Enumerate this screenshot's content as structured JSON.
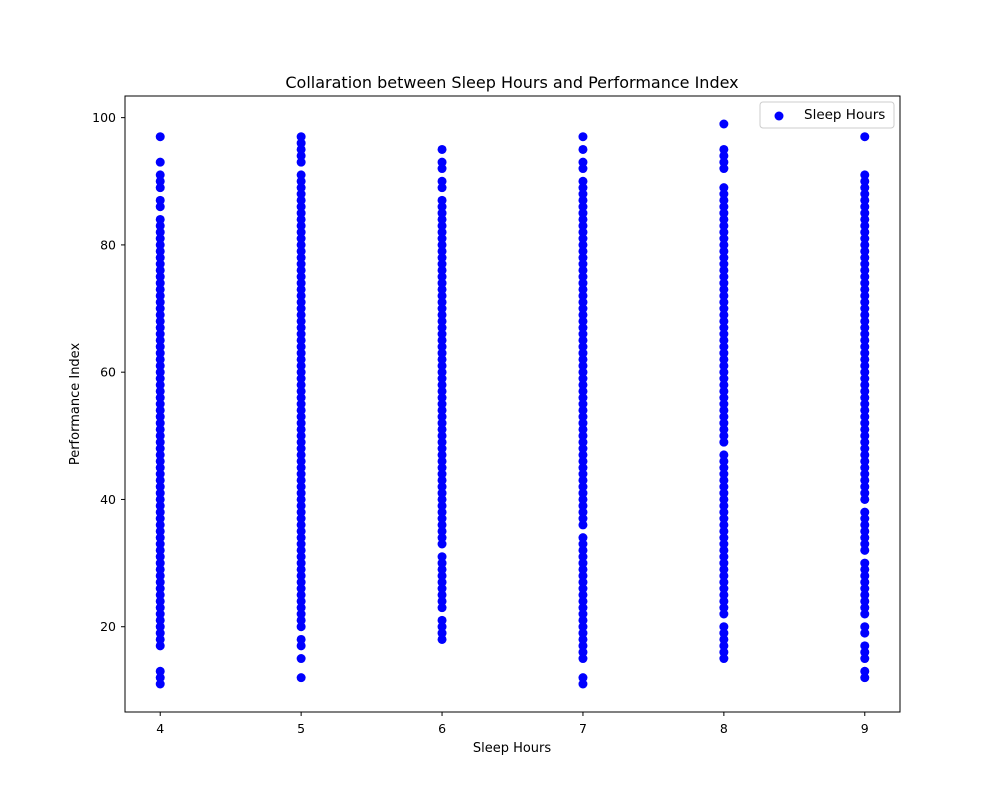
{
  "chart_data": {
    "type": "scatter",
    "title": "Collaration between Sleep Hours and Performance Index",
    "xlabel": "Sleep Hours",
    "ylabel": "Performance Index",
    "xlim": [
      3.75,
      9.25
    ],
    "ylim": [
      6.6,
      103.4
    ],
    "xticks": [
      4,
      5,
      6,
      7,
      8,
      9
    ],
    "yticks": [
      20,
      40,
      60,
      80,
      100
    ],
    "grid": false,
    "legend": {
      "placement": "top-right",
      "entries": [
        "Sleep Hours"
      ]
    },
    "marker_color": "#0000ff",
    "series": [
      {
        "name": "Sleep Hours",
        "points": [
          {
            "x": 4,
            "min": 17,
            "max": 84,
            "extra": [
              11,
              12,
              13,
              86,
              87,
              89,
              90,
              91,
              93,
              97
            ]
          },
          {
            "x": 5,
            "min": 20,
            "max": 91,
            "extra": [
              12,
              15,
              17,
              18,
              93,
              94,
              95,
              96,
              97
            ]
          },
          {
            "x": 6,
            "min": 23,
            "max": 87,
            "extra": [
              18,
              19,
              20,
              21,
              89,
              90,
              92,
              93,
              95
            ]
          },
          {
            "x": 7,
            "min": 15,
            "max": 90,
            "extra": [
              11,
              12,
              92,
              93,
              95,
              97
            ]
          },
          {
            "x": 8,
            "min": 22,
            "max": 89,
            "extra": [
              15,
              16,
              17,
              18,
              19,
              20,
              92,
              93,
              94,
              95,
              99
            ]
          },
          {
            "x": 9,
            "min": 22,
            "max": 91,
            "extra": [
              12,
              13,
              15,
              16,
              17,
              19,
              20,
              97
            ]
          }
        ],
        "gaps": [
          {
            "x": 6,
            "from": 31,
            "to": 33
          },
          {
            "x": 7,
            "from": 34,
            "to": 36
          },
          {
            "x": 8,
            "from": 47,
            "to": 49
          },
          {
            "x": 9,
            "from": 30,
            "to": 32
          },
          {
            "x": 9,
            "from": 38,
            "to": 40
          }
        ]
      }
    ]
  }
}
